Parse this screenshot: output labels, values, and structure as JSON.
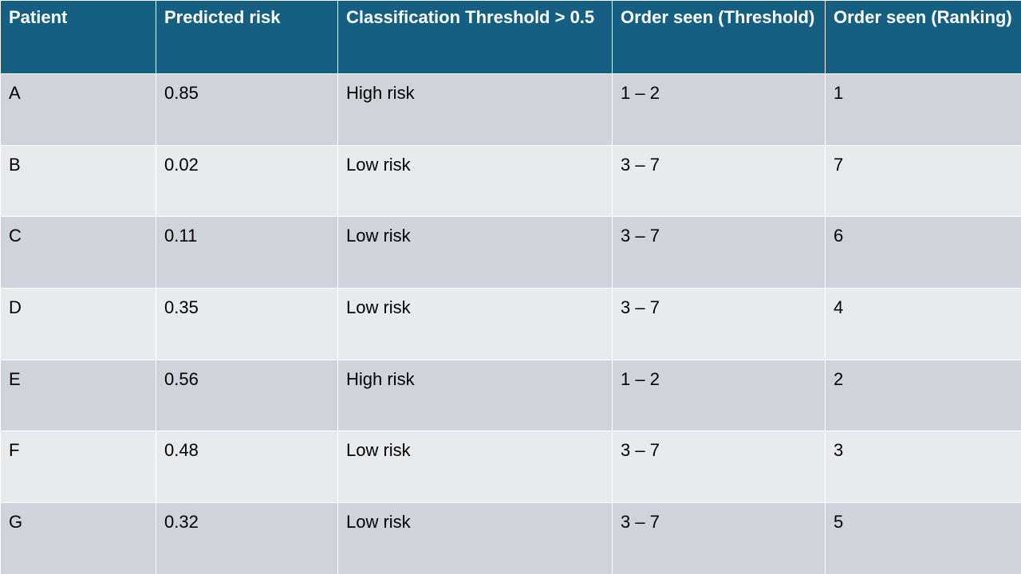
{
  "table": {
    "headers": [
      "Patient",
      "Predicted risk",
      "Classification Threshold > 0.5",
      "Order seen (Threshold)",
      "Order seen (Ranking)"
    ],
    "rows": [
      [
        "A",
        "0.85",
        "High risk",
        "1 – 2",
        "1"
      ],
      [
        "B",
        "0.02",
        "Low risk",
        "3 – 7",
        "7"
      ],
      [
        "C",
        "0.11",
        "Low risk",
        "3 – 7",
        "6"
      ],
      [
        "D",
        "0.35",
        "Low risk",
        "3 – 7",
        "4"
      ],
      [
        "E",
        "0.56",
        "High risk",
        "1 – 2",
        "2"
      ],
      [
        "F",
        "0.48",
        "Low risk",
        "3 – 7",
        "3"
      ],
      [
        "G",
        "0.32",
        "Low risk",
        "3 – 7",
        "5"
      ]
    ]
  },
  "colors": {
    "header_bg": "#156082",
    "header_text": "#ffffff",
    "row_odd_bg": "#cfd3db",
    "row_even_bg": "#e8ebee"
  }
}
